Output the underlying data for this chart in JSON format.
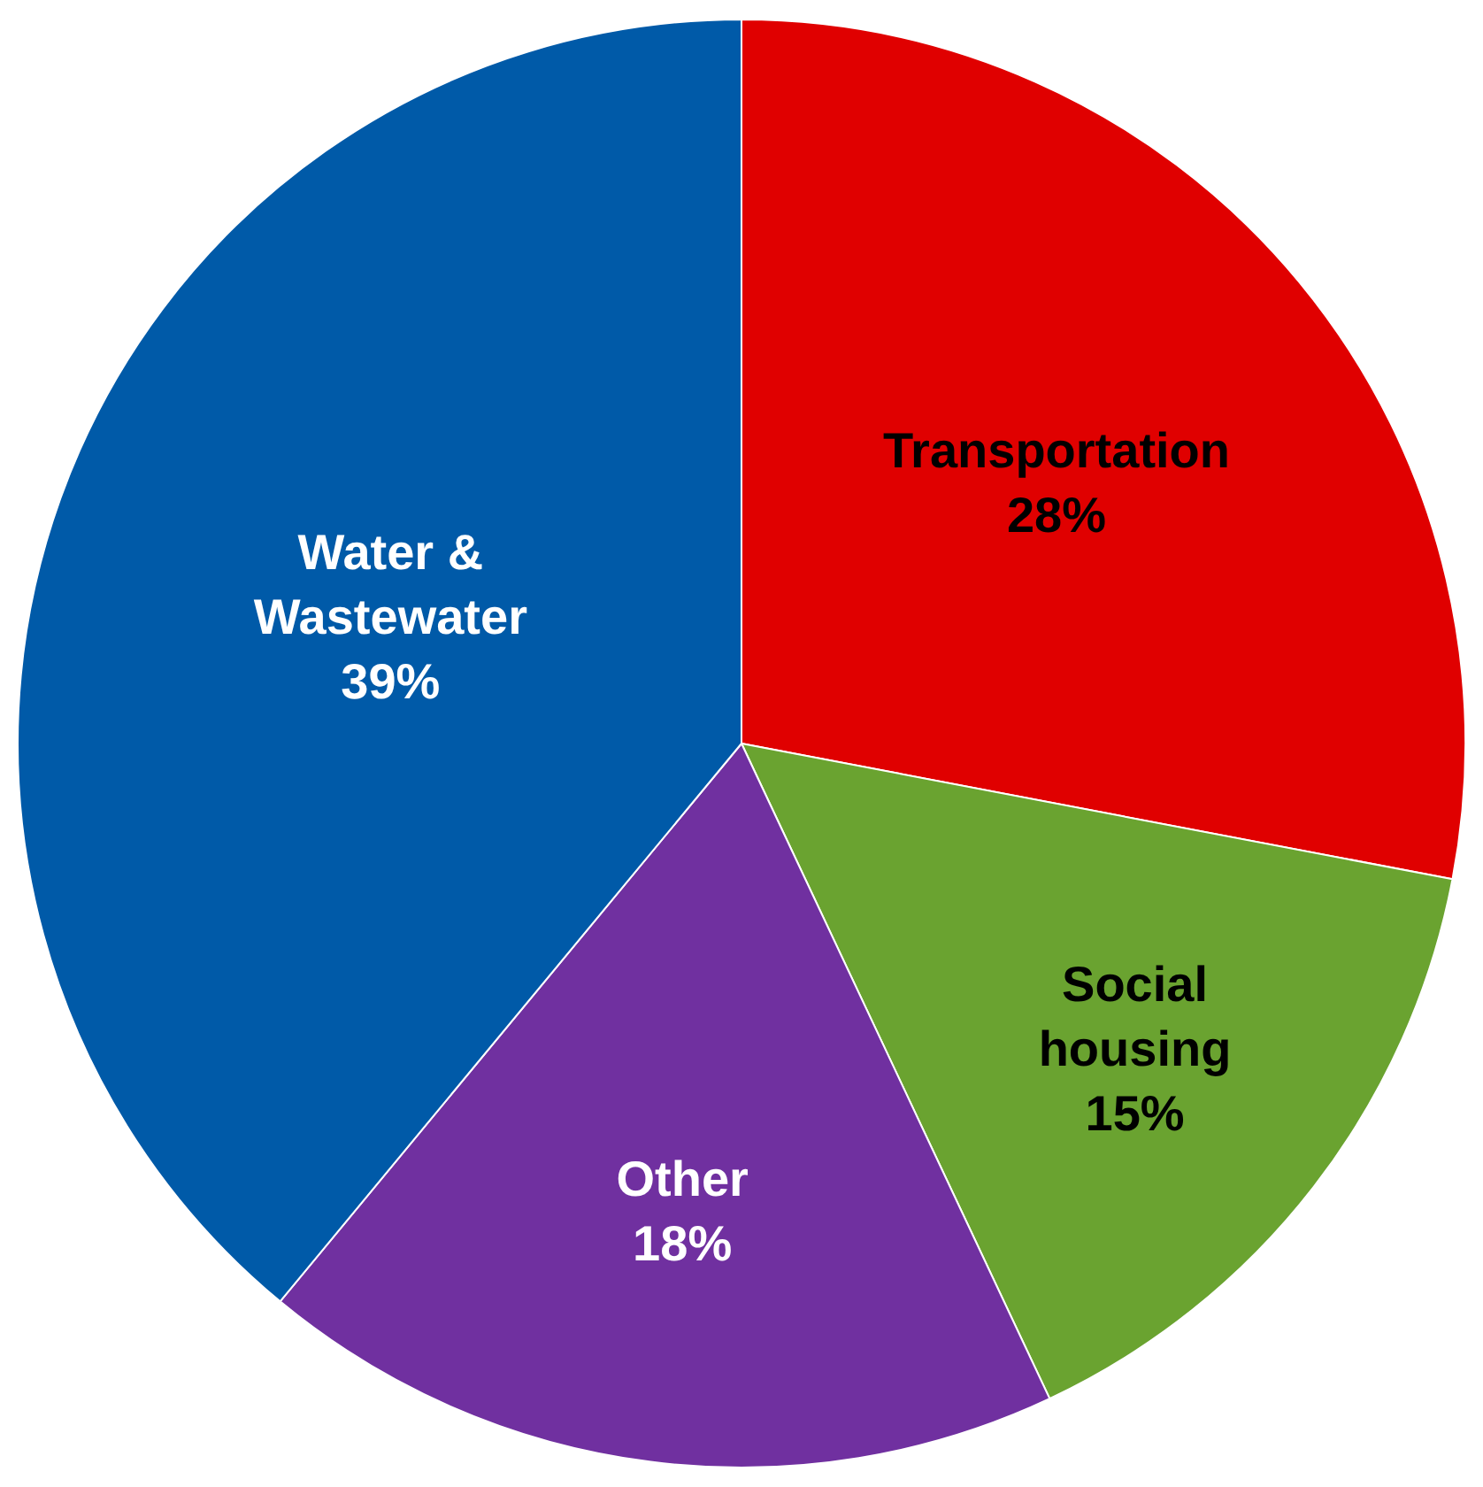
{
  "chart_data": {
    "type": "pie",
    "categories": [
      "Transportation",
      "Social housing",
      "Other",
      "Water & Wastewater"
    ],
    "values": [
      28,
      15,
      18,
      39
    ],
    "colors": [
      "#e00000",
      "#6aa330",
      "#7030a0",
      "#005aa8"
    ],
    "value_labels": [
      "28%",
      "15%",
      "18%",
      "39%"
    ],
    "legend": false
  }
}
